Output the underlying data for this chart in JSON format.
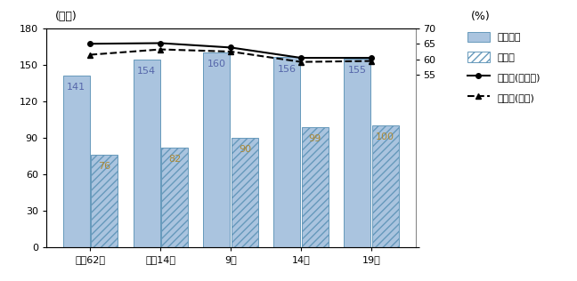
{
  "categories": [
    "昭和62年",
    "平成14年",
    "9年",
    "14年",
    "19年"
  ],
  "yugyosha": [
    141,
    154,
    160,
    156,
    155
  ],
  "mugyosha": [
    76,
    82,
    90,
    99,
    100
  ],
  "yugyoritsu_ibaraki": [
    65.0,
    65.2,
    63.8,
    60.5,
    60.5
  ],
  "yugyoritsu_zenkoku": [
    61.5,
    63.2,
    62.5,
    59.2,
    59.5
  ],
  "bar_color_solid": "#aac4df",
  "bar_color_hatch": "#aac4df",
  "bar_edgecolor": "#6699bb",
  "line_ibaraki_color": "#000000",
  "line_zenkoku_color": "#000000",
  "ylabel_left": "(万人)",
  "ylabel_right": "(%)",
  "ylim_left": [
    0,
    180
  ],
  "ylim_right": [
    0,
    70
  ],
  "yticks_left": [
    0,
    30,
    60,
    90,
    120,
    150,
    180
  ],
  "yticks_right_show": [
    55,
    60,
    65,
    70
  ],
  "yticks_right_all": [
    0,
    55,
    60,
    65,
    70
  ],
  "legend_labels": [
    "有業者数",
    "無業者",
    "有業率(茨城県)",
    "有業率(全国)"
  ],
  "annot_color_yugyosha": "#5566aa",
  "annot_color_mugyosha": "#aa8833",
  "background_color": "#ffffff",
  "font_size_label": 9,
  "font_size_tick": 8,
  "font_size_annot": 8,
  "bar_width": 0.38,
  "bar_gap": 0.02
}
